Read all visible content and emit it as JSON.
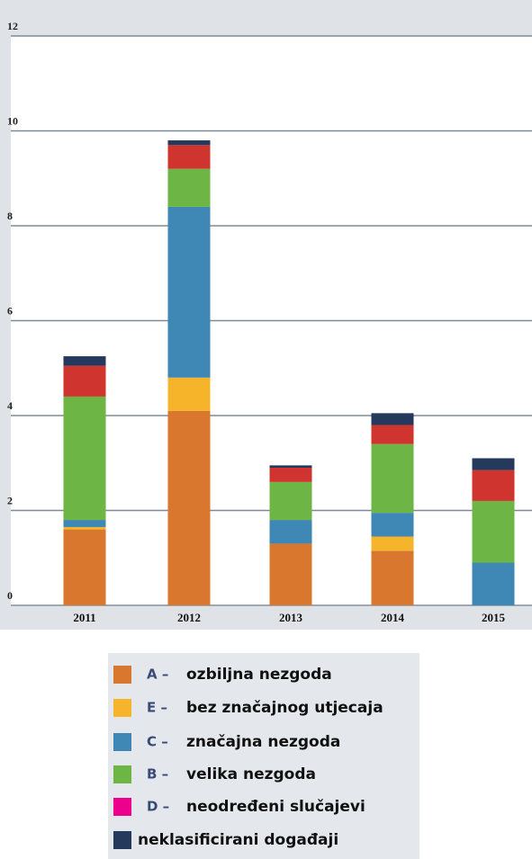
{
  "chart_data": {
    "type": "stacked_bar",
    "categories": [
      "2011",
      "2012",
      "2013",
      "2014",
      "2015"
    ],
    "ylim": [
      0,
      12
    ],
    "yticks": [
      0,
      2,
      4,
      6,
      8,
      10,
      12
    ],
    "grid": true,
    "series": [
      {
        "code": "A –",
        "name": "ozbiljna nezgoda",
        "color": "#d9772e",
        "values": [
          1.6,
          4.1,
          1.3,
          1.15,
          0
        ]
      },
      {
        "code": "E –",
        "name": "bez značajnog utjecaja",
        "color": "#f6b42a",
        "values": [
          0.05,
          0.7,
          0,
          0.3,
          0
        ]
      },
      {
        "code": "C –",
        "name": "značajna nezgoda",
        "color": "#3f88b6",
        "values": [
          0.15,
          3.6,
          0.5,
          0.5,
          0.9
        ]
      },
      {
        "code": "B –",
        "name": "velika nezgoda",
        "color": "#6db544",
        "values": [
          2.6,
          0.8,
          0.8,
          1.45,
          1.3
        ]
      },
      {
        "code": "D –",
        "name": "neodređeni slučajevi",
        "color": "#d0342f",
        "legend_color": "#ec008c",
        "values": [
          0.65,
          0.5,
          0.3,
          0.4,
          0.65
        ]
      },
      {
        "name": "neklasificirani događaji",
        "color": "#24395c",
        "values": [
          0.2,
          0.1,
          0.05,
          0.25,
          0.25
        ]
      }
    ]
  }
}
